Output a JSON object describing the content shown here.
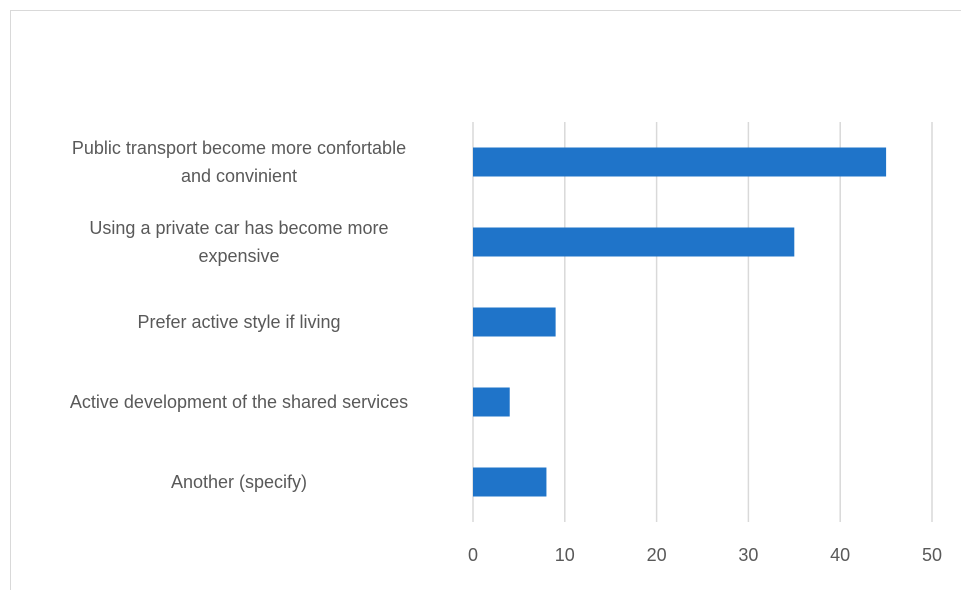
{
  "chart_data": {
    "type": "bar",
    "orientation": "horizontal",
    "categories": [
      [
        "Public transport become more confortable",
        "and convinient"
      ],
      [
        "Using a private car has become more",
        "expensive"
      ],
      [
        "Prefer active style if living"
      ],
      [
        "Active development of the shared services"
      ],
      [
        "Another (specify)"
      ]
    ],
    "values": [
      45,
      35,
      9,
      4,
      8
    ],
    "title": "",
    "xlabel": "",
    "ylabel": "",
    "xlim": [
      0,
      50
    ],
    "xticks": [
      "0",
      "10",
      "20",
      "30",
      "40",
      "50"
    ],
    "grid": "vertical",
    "legend": "none",
    "bar_color": "#1f74c9",
    "grid_color": "#d9d9d9"
  }
}
